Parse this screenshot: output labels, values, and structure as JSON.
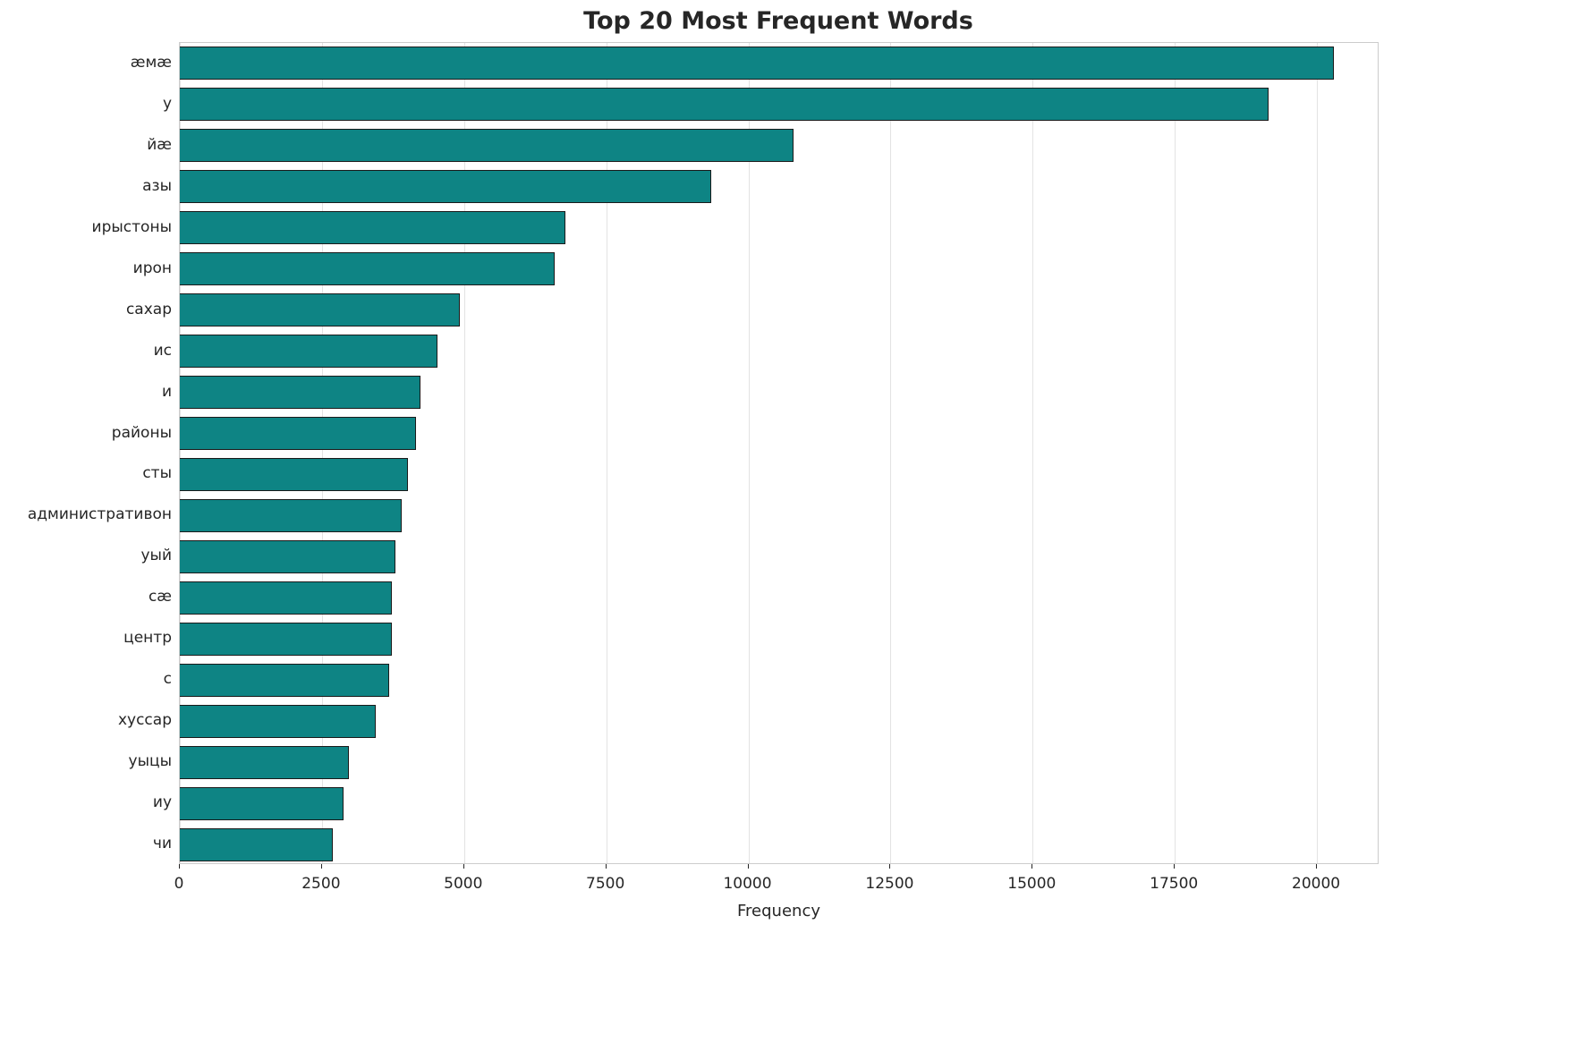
{
  "title": "Top 20 Most Frequent Words",
  "chart_data": {
    "type": "bar",
    "orientation": "horizontal",
    "title": "Top 20 Most Frequent Words",
    "xlabel": "Frequency",
    "ylabel": "",
    "categories": [
      "æмæ",
      "у",
      "йæ",
      "азы",
      "ирыстоны",
      "ирон",
      "сахар",
      "ис",
      "и",
      "районы",
      "сты",
      "административон",
      "уый",
      "сæ",
      "центр",
      "с",
      "хуссар",
      "уыцы",
      "иу",
      "чи"
    ],
    "values": [
      20300,
      19150,
      10800,
      9350,
      6780,
      6590,
      4920,
      4530,
      4240,
      4150,
      4020,
      3910,
      3790,
      3730,
      3730,
      3680,
      3440,
      2970,
      2880,
      2690
    ],
    "xlim": [
      0,
      21100
    ],
    "x_ticks": [
      0,
      2500,
      5000,
      7500,
      10000,
      12500,
      15000,
      17500,
      20000
    ],
    "grid": "vertical",
    "legend": "none",
    "bar_color": "#0e8484",
    "bar_edge_color": "#1a1a1a"
  }
}
